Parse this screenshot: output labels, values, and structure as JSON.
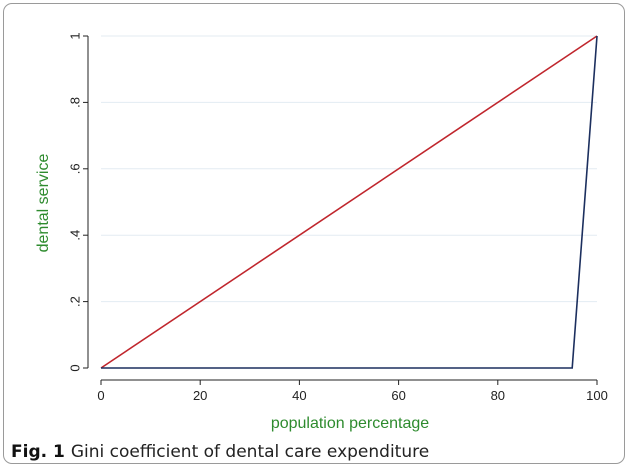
{
  "chart_data": {
    "type": "line",
    "xlabel": "population percentage",
    "ylabel": "dental service",
    "xlim": [
      0,
      100
    ],
    "ylim": [
      0,
      1
    ],
    "x_ticks": [
      "0",
      "20",
      "40",
      "60",
      "80",
      "100"
    ],
    "y_ticks": [
      "0",
      ".2",
      ".4",
      ".6",
      ".8",
      "1"
    ],
    "grid": true,
    "series": [
      {
        "x": [
          0,
          100
        ],
        "y": [
          0,
          1
        ],
        "color": "#c0262d"
      },
      {
        "x": [
          0,
          95,
          100
        ],
        "y": [
          0,
          0,
          1
        ],
        "color": "#1c2f5e"
      }
    ]
  },
  "caption": {
    "label": "Fig. 1",
    "text": "Gini coefficient of dental care expenditure"
  },
  "colors": {
    "axis_title": "#2e8b2e",
    "grid": "#e3ebf2"
  }
}
